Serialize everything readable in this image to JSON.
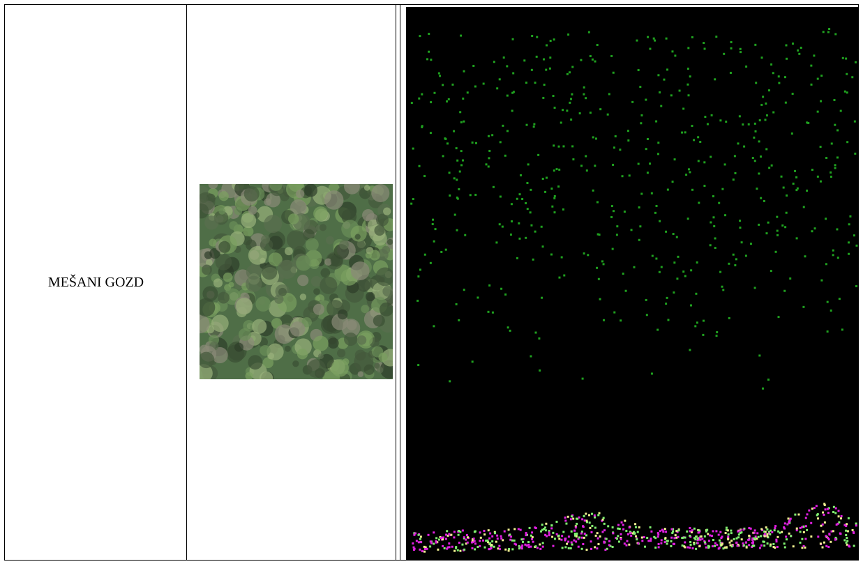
{
  "table": {
    "rows": [
      [
        "MEŠANI GOZD"
      ]
    ]
  }
}
